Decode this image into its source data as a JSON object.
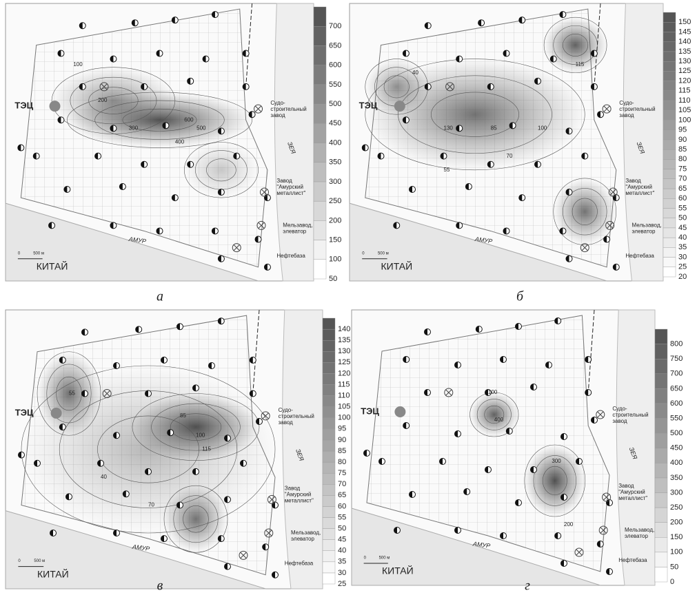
{
  "map_labels": {
    "tec": "ТЭЦ",
    "shipyard": [
      "Судо-",
      "строительный",
      "завод"
    ],
    "metallist": [
      "Завод",
      "\"Амурский",
      "металлист\""
    ],
    "mill": [
      "Мельзавод,",
      "элеватор"
    ],
    "oil": "Нефтебаза",
    "amur": "АМУР",
    "zeya": "ЗЕЯ",
    "china": "КИТАЙ",
    "scale_zero": "0",
    "scale": "500 м"
  },
  "panels": [
    {
      "caption": "а",
      "colorbar": [
        50,
        100,
        150,
        200,
        250,
        300,
        350,
        400,
        450,
        500,
        550,
        600,
        650,
        700
      ],
      "contour_labels": [
        100,
        200,
        300,
        400,
        500,
        600
      ]
    },
    {
      "caption": "б",
      "colorbar": [
        20,
        25,
        30,
        35,
        40,
        45,
        50,
        55,
        60,
        65,
        70,
        75,
        80,
        85,
        90,
        95,
        100,
        105,
        110,
        115,
        120,
        125,
        130,
        135,
        140,
        145,
        150
      ],
      "contour_labels": [
        40,
        55,
        70,
        85,
        100,
        115,
        130
      ]
    },
    {
      "caption": "в",
      "colorbar": [
        25,
        30,
        35,
        40,
        45,
        50,
        55,
        60,
        65,
        70,
        75,
        80,
        85,
        90,
        95,
        100,
        105,
        110,
        115,
        120,
        125,
        130,
        135,
        140
      ],
      "contour_labels": [
        40,
        55,
        70,
        85,
        100,
        115
      ]
    },
    {
      "caption": "г",
      "colorbar": [
        0,
        50,
        100,
        150,
        200,
        250,
        300,
        350,
        400,
        450,
        500,
        550,
        600,
        650,
        700,
        750,
        800
      ],
      "contour_labels": [
        100,
        200,
        300,
        400
      ]
    }
  ]
}
